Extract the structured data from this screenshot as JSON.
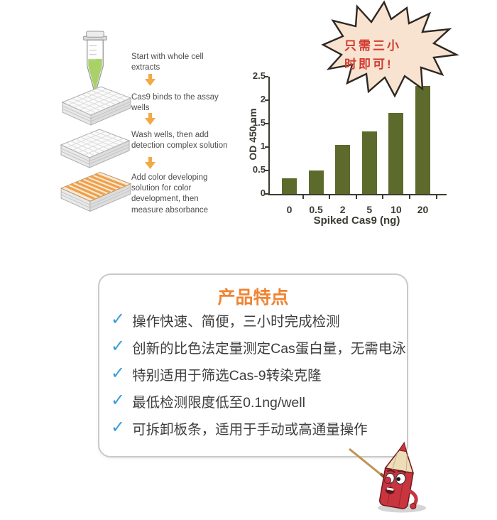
{
  "page": {
    "background": "#ffffff"
  },
  "workflow": {
    "arrow_color": "#f2a946",
    "steps": [
      {
        "icon": "microcentrifuge-tube-icon",
        "text": "Start with whole cell extracts"
      },
      {
        "icon": "microplate-icon",
        "text": "Cas9 binds to the assay wells"
      },
      {
        "icon": "microplate-icon",
        "text": "Wash wells, then add detection complex solution"
      },
      {
        "icon": "microplate-color-icon",
        "text": "Add color developing solution for color development, then measure absorbance"
      }
    ]
  },
  "callout": {
    "line1": "只需三小",
    "line2": "时即可!",
    "fill": "#f8e3d0",
    "border": "#2f2722",
    "text_color": "#d13b30"
  },
  "chart_data": {
    "type": "bar",
    "title": "",
    "categories": [
      "0",
      "0.5",
      "2",
      "5",
      "10",
      "20"
    ],
    "values": [
      0.33,
      0.5,
      1.04,
      1.33,
      1.72,
      2.3
    ],
    "xlabel": "Spiked Cas9 (ng)",
    "ylabel": "OD 450 nm",
    "ylim": [
      0,
      2.5
    ],
    "yticks": [
      0,
      0.5,
      1,
      1.5,
      2,
      2.5
    ],
    "ytick_labels": [
      "0",
      "0.5",
      "1",
      "1.5",
      "2",
      "2.5"
    ],
    "bar_color": "#5c6a2b",
    "axis_color": "#3b3b33",
    "grid": false,
    "legend": null
  },
  "features": {
    "title": "产品特点",
    "title_color": "#ef8432",
    "check_glyph": "✓",
    "check_color": "#3a9ad9",
    "items": [
      "操作快速、简便，三小时完成检测",
      "创新的比色法定量测定Cas蛋白量，无需电泳",
      "特别适用于筛选Cas-9转染克隆",
      "最低检测限度低至0.1ng/well",
      "可拆卸板条，适用于手动或高通量操作"
    ]
  },
  "mascot": {
    "name": "red-pencil-cartoon-character"
  }
}
